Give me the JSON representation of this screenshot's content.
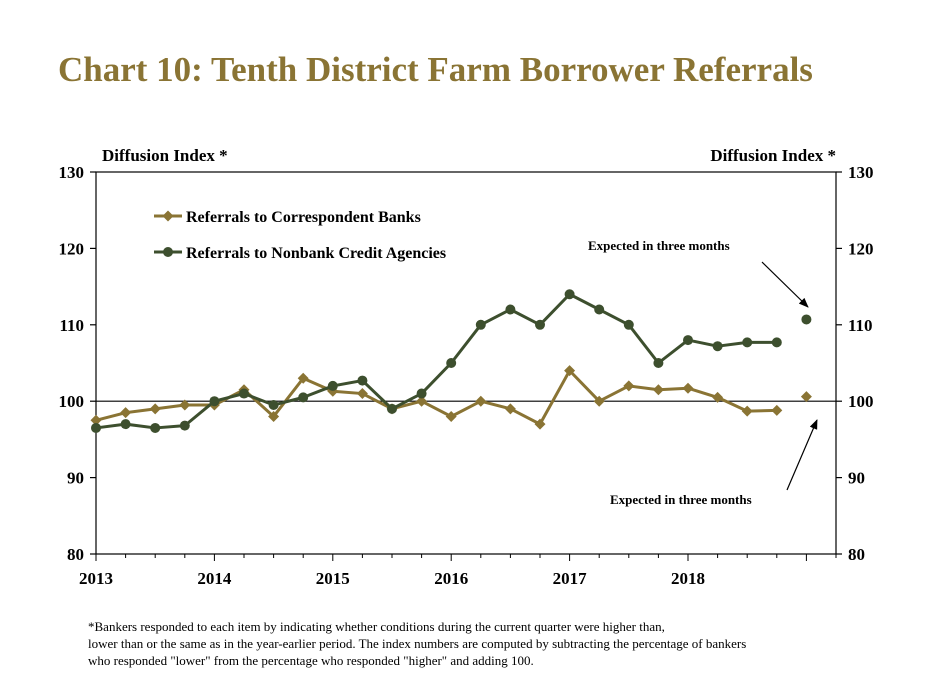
{
  "title": "Chart 10: Tenth District Farm Borrower Referrals",
  "footnote": [
    "*Bankers responded to each item by indicating whether conditions during the current quarter were higher than,",
    "lower than or the same as in the year-earlier period.  The index numbers are computed by subtracting the percentage of bankers",
    "who responded \"lower\" from the percentage who responded \"higher\" and adding 100."
  ],
  "colors": {
    "title": "#8a7434",
    "correspondent": "#8a7434",
    "nonbank": "#3d4f2e"
  },
  "chart_data": {
    "type": "line",
    "ylabel_left": "Diffusion Index *",
    "ylabel_right": "Diffusion Index *",
    "ylim": [
      80,
      130
    ],
    "yticks": [
      80,
      90,
      100,
      110,
      120,
      130
    ],
    "xlim": [
      2013,
      2019.25
    ],
    "xticks": [
      "2013",
      "2014",
      "2015",
      "2016",
      "2017",
      "2018"
    ],
    "reference_line": 100,
    "series": [
      {
        "name": "Referrals to Correspondent Banks",
        "marker": "diamond",
        "x": [
          2013.0,
          2013.25,
          2013.5,
          2013.75,
          2014.0,
          2014.25,
          2014.5,
          2014.75,
          2015.0,
          2015.25,
          2015.5,
          2015.75,
          2016.0,
          2016.25,
          2016.5,
          2016.75,
          2017.0,
          2017.25,
          2017.5,
          2017.75,
          2018.0,
          2018.25,
          2018.5,
          2018.75
        ],
        "values": [
          97.5,
          98.5,
          99.0,
          99.5,
          99.5,
          101.5,
          98.0,
          103.0,
          101.3,
          101.0,
          99.0,
          100.0,
          98.0,
          100.0,
          99.0,
          97.0,
          104.0,
          100.0,
          102.0,
          101.5,
          101.7,
          100.5,
          98.7,
          98.8
        ],
        "expected": {
          "x": 2019.0,
          "value": 100.6
        }
      },
      {
        "name": "Referrals to Nonbank Credit Agencies",
        "marker": "circle",
        "x": [
          2013.0,
          2013.25,
          2013.5,
          2013.75,
          2014.0,
          2014.25,
          2014.5,
          2014.75,
          2015.0,
          2015.25,
          2015.5,
          2015.75,
          2016.0,
          2016.25,
          2016.5,
          2016.75,
          2017.0,
          2017.25,
          2017.5,
          2017.75,
          2018.0,
          2018.25,
          2018.5,
          2018.75
        ],
        "values": [
          96.5,
          97.0,
          96.5,
          96.8,
          100.0,
          101.0,
          99.5,
          100.5,
          102.0,
          102.7,
          99.0,
          101.0,
          105.0,
          110.0,
          112.0,
          110.0,
          114.0,
          112.0,
          110.0,
          105.0,
          108.0,
          107.2,
          107.7,
          107.7
        ],
        "expected": {
          "x": 2019.0,
          "value": 110.7
        }
      }
    ],
    "annotations": [
      {
        "text": "Expected in three months",
        "target": "Referrals to Nonbank Credit Agencies"
      },
      {
        "text": "Expected in three months",
        "target": "Referrals to Correspondent Banks"
      }
    ]
  }
}
